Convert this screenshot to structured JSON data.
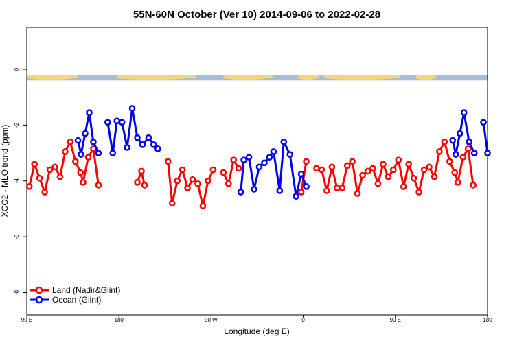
{
  "chart_data": {
    "type": "line",
    "title": "55N-60N October (Ver 10)   2014-09-06 to 2022-02-28",
    "xlabel": "Longitude (deg E)",
    "ylabel": "XCO2 - MLO trend (ppm)",
    "xlim": [
      90,
      540
    ],
    "ylim": [
      -8.8,
      1.5
    ],
    "x_ticks": [
      {
        "value": 90,
        "label": "90 E"
      },
      {
        "value": 180,
        "label": "180"
      },
      {
        "value": 270,
        "label": "90 W"
      },
      {
        "value": 360,
        "label": "0"
      },
      {
        "value": 450,
        "label": "90 E"
      },
      {
        "value": 540,
        "label": "180"
      }
    ],
    "y_ticks": [
      {
        "value": 0,
        "label": "0"
      },
      {
        "value": -2,
        "label": "-2"
      },
      {
        "value": -4,
        "label": "-4"
      },
      {
        "value": -6,
        "label": "-6"
      },
      {
        "value": -8,
        "label": "-8"
      }
    ],
    "grid": false,
    "legend_position": "bottom-left",
    "land_ocean_strip": {
      "y_range": [
        -0.4,
        -0.2
      ],
      "land_color": "#f5d57a",
      "ocean_color": "#a9bdd6"
    },
    "series": [
      {
        "name": "Land (Nadir&Glint)",
        "color": "#ff0000",
        "segments": [
          [
            [
              92.5,
              -4.2
            ],
            [
              97.5,
              -3.4
            ],
            [
              102.5,
              -3.9
            ],
            [
              107.5,
              -4.4
            ],
            [
              112.5,
              -3.6
            ],
            [
              117.5,
              -3.5
            ],
            [
              122.5,
              -3.85
            ],
            [
              127.5,
              -2.95
            ],
            [
              132.5,
              -2.6
            ],
            [
              137.5,
              -3.3
            ],
            [
              142.5,
              -3.7
            ],
            [
              145,
              -4.05
            ],
            [
              150,
              -3.15
            ],
            [
              155,
              -2.85
            ],
            [
              160,
              -4.15
            ]
          ],
          [
            [
              198,
              -4.05
            ],
            [
              202,
              -3.65
            ],
            [
              205,
              -4.15
            ]
          ],
          [
            [
              228,
              -3.3
            ],
            [
              232,
              -4.8
            ],
            [
              237,
              -4.0
            ],
            [
              242,
              -3.6
            ],
            [
              247,
              -4.25
            ],
            [
              252,
              -3.95
            ],
            [
              257,
              -4.1
            ],
            [
              262,
              -4.9
            ],
            [
              267,
              -4.0
            ],
            [
              272,
              -3.6
            ]
          ],
          [
            [
              282,
              -3.7
            ],
            [
              287,
              -4.1
            ],
            [
              292,
              -3.25
            ],
            [
              297,
              -3.55
            ]
          ],
          [
            [
              358,
              -4.4
            ],
            [
              363,
              -3.3
            ]
          ],
          [
            [
              373,
              -3.55
            ],
            [
              378,
              -3.6
            ],
            [
              383,
              -4.35
            ],
            [
              388,
              -3.5
            ],
            [
              393,
              -4.25
            ],
            [
              398,
              -4.25
            ],
            [
              403,
              -3.45
            ],
            [
              408,
              -3.3
            ],
            [
              413,
              -4.45
            ],
            [
              418,
              -3.8
            ],
            [
              423,
              -3.65
            ],
            [
              428,
              -3.55
            ],
            [
              433,
              -4.1
            ],
            [
              438,
              -3.4
            ],
            [
              443,
              -3.85
            ],
            [
              448,
              -3.6
            ],
            [
              453,
              -3.25
            ],
            [
              458,
              -4.2
            ],
            [
              463,
              -3.4
            ],
            [
              468,
              -3.9
            ],
            [
              473,
              -4.4
            ],
            [
              478,
              -3.6
            ],
            [
              483,
              -3.5
            ],
            [
              488,
              -3.85
            ],
            [
              493,
              -2.95
            ],
            [
              498,
              -2.6
            ],
            [
              503,
              -3.3
            ],
            [
              508,
              -3.7
            ],
            [
              511,
              -4.05
            ],
            [
              516,
              -3.15
            ],
            [
              521,
              -2.85
            ],
            [
              526,
              -4.15
            ]
          ]
        ]
      },
      {
        "name": "Ocean (Glint)",
        "color": "#0000ee",
        "segments": [
          [
            [
              140,
              -2.55
            ],
            [
              143,
              -3.05
            ],
            [
              147,
              -2.3
            ],
            [
              151,
              -1.55
            ],
            [
              155,
              -2.6
            ],
            [
              160,
              -3.0
            ]
          ],
          [
            [
              169,
              -1.9
            ],
            [
              174,
              -3.0
            ],
            [
              178,
              -1.85
            ],
            [
              183,
              -1.9
            ],
            [
              188,
              -2.8
            ],
            [
              193,
              -1.4
            ],
            [
              198,
              -2.45
            ],
            [
              203,
              -2.7
            ],
            [
              209,
              -2.45
            ],
            [
              214,
              -2.7
            ],
            [
              218,
              -2.85
            ]
          ],
          [
            [
              299,
              -4.4
            ],
            [
              302,
              -3.25
            ],
            [
              307,
              -3.15
            ],
            [
              312,
              -4.3
            ],
            [
              317,
              -3.5
            ],
            [
              322,
              -3.35
            ],
            [
              327,
              -3.15
            ],
            [
              331,
              -2.95
            ],
            [
              337,
              -4.35
            ],
            [
              341,
              -2.6
            ],
            [
              347,
              -3.05
            ],
            [
              353,
              -4.55
            ],
            [
              358,
              -3.75
            ],
            [
              363,
              -4.2
            ]
          ],
          [
            [
              506,
              -2.55
            ],
            [
              509,
              -3.05
            ],
            [
              513,
              -2.3
            ],
            [
              517,
              -1.55
            ],
            [
              522,
              -2.6
            ],
            [
              527,
              -3.0
            ]
          ],
          [
            [
              536,
              -1.9
            ],
            [
              540,
              -3.0
            ]
          ]
        ]
      }
    ]
  }
}
